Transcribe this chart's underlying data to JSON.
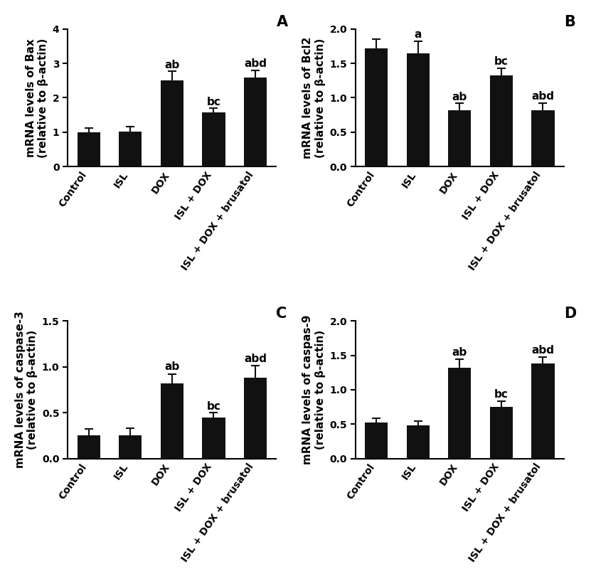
{
  "subplots": [
    {
      "panel": "A",
      "ylabel": "mRNA levels of Bax\n(relative to β-actin)",
      "ylim": [
        0,
        4
      ],
      "yticks": [
        0,
        1,
        2,
        3,
        4
      ],
      "values": [
        1.0,
        1.02,
        2.5,
        1.58,
        2.58
      ],
      "errors": [
        0.13,
        0.15,
        0.28,
        0.12,
        0.22
      ],
      "annotations": [
        "",
        "",
        "ab",
        "bc",
        "abd"
      ],
      "ann_positions": [
        null,
        null,
        2.8,
        1.72,
        2.83
      ]
    },
    {
      "panel": "B",
      "ylabel": "mRNA levels of Bcl2\n(relative to β-actin)",
      "ylim": [
        0,
        2.0
      ],
      "yticks": [
        0.0,
        0.5,
        1.0,
        1.5,
        2.0
      ],
      "values": [
        1.72,
        1.65,
        0.82,
        1.33,
        0.82
      ],
      "errors": [
        0.13,
        0.17,
        0.1,
        0.1,
        0.1
      ],
      "annotations": [
        "",
        "a",
        "ab",
        "bc",
        "abd"
      ],
      "ann_positions": [
        null,
        1.84,
        0.93,
        1.45,
        0.94
      ]
    },
    {
      "panel": "C",
      "ylabel": "mRNA levels of caspase-3\n(relative to β-actin)",
      "ylim": [
        0,
        1.5
      ],
      "yticks": [
        0.0,
        0.5,
        1.0,
        1.5
      ],
      "values": [
        0.25,
        0.25,
        0.82,
        0.45,
        0.88
      ],
      "errors": [
        0.07,
        0.08,
        0.1,
        0.05,
        0.13
      ],
      "annotations": [
        "",
        "",
        "ab",
        "bc",
        "abd"
      ],
      "ann_positions": [
        null,
        null,
        0.94,
        0.51,
        1.03
      ]
    },
    {
      "panel": "D",
      "ylabel": "mRNA levels of caspas-9\n(relative to β-actin)",
      "ylim": [
        0,
        2.0
      ],
      "yticks": [
        0.0,
        0.5,
        1.0,
        1.5,
        2.0
      ],
      "values": [
        0.52,
        0.48,
        1.32,
        0.75,
        1.38
      ],
      "errors": [
        0.07,
        0.06,
        0.12,
        0.08,
        0.1
      ],
      "annotations": [
        "",
        "",
        "ab",
        "bc",
        "abd"
      ],
      "ann_positions": [
        null,
        null,
        1.46,
        0.85,
        1.5
      ]
    }
  ],
  "categories": [
    "Control",
    "ISL",
    "DOX",
    "ISL + DOX",
    "ISL + DOX + brusatol"
  ],
  "bar_color": "#111111",
  "error_color": "#111111",
  "bar_width": 0.55,
  "fontsize_label": 11,
  "fontsize_tick": 10,
  "fontsize_panel": 15,
  "fontsize_annotation": 11,
  "background_color": "#ffffff"
}
